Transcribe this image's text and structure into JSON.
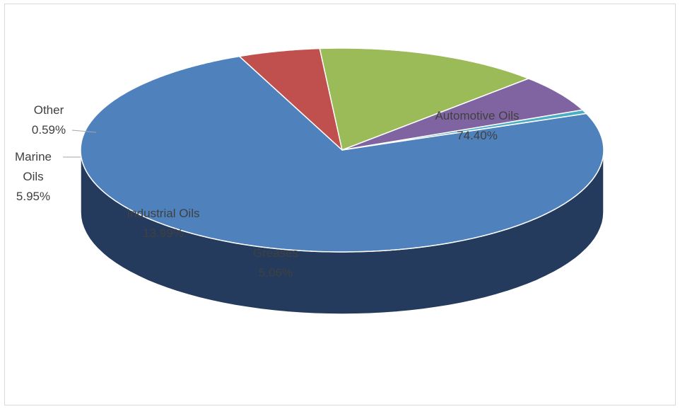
{
  "chart_data": {
    "type": "pie",
    "title": "",
    "three_d": true,
    "legend": "none",
    "slices": [
      {
        "name": "Automotive Oils",
        "value": 74.4,
        "label": "74.40%",
        "color": "#4f81bd",
        "side": "#243b5e"
      },
      {
        "name": "Greases",
        "value": 5.06,
        "label": "5.06%",
        "color": "#c0504d",
        "side": "#7a2e2c"
      },
      {
        "name": "Industrial Oils",
        "value": 13.99,
        "label": "13.99%",
        "color": "#9bbb59",
        "side": "#6a8a36"
      },
      {
        "name": "Marine Oils",
        "value": 5.95,
        "label": "5.95%",
        "color": "#8064a2",
        "side": "#4f3b69"
      },
      {
        "name": "Other",
        "value": 0.59,
        "label": "0.59%",
        "color": "#4bacc6",
        "side": "#2c6f80"
      }
    ]
  },
  "labels": {
    "automotive_name": "Automotive Oils",
    "automotive_pct": "74.40%",
    "greases_name": "Greases",
    "greases_pct": "5.06%",
    "industrial_name": "Industrial Oils",
    "industrial_pct": "13.99%",
    "marine_name_1": "Marine",
    "marine_name_2": "Oils",
    "marine_pct": "5.95%",
    "other_name": "Other",
    "other_pct": "0.59%"
  }
}
